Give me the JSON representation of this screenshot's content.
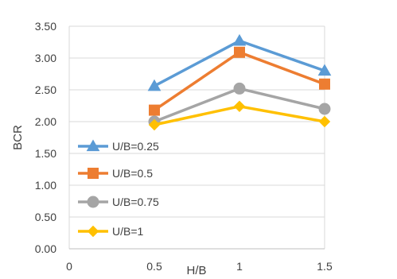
{
  "chart_data": {
    "type": "line",
    "title": "",
    "xlabel": "H/B",
    "ylabel": "BCR",
    "xlim": [
      0,
      1.5
    ],
    "ylim": [
      0,
      3.5
    ],
    "x_ticks": [
      "0",
      "0.5",
      "1",
      "1.5"
    ],
    "y_ticks": [
      "0.00",
      "0.50",
      "1.00",
      "1.50",
      "2.00",
      "2.50",
      "3.00",
      "3.50"
    ],
    "grid": "horizontal",
    "legend_position": "lower-left",
    "series": [
      {
        "name": "U/B=0.25",
        "color": "#5B9BD5",
        "marker": "triangle",
        "x": [
          0.5,
          1,
          1.5
        ],
        "values": [
          2.56,
          3.27,
          2.8
        ]
      },
      {
        "name": "U/B=0.5",
        "color": "#ED7D31",
        "marker": "square",
        "x": [
          0.5,
          1,
          1.5
        ],
        "values": [
          2.18,
          3.09,
          2.59
        ]
      },
      {
        "name": "U/B=0.75",
        "color": "#A5A5A5",
        "marker": "circle",
        "x": [
          0.5,
          1,
          1.5
        ],
        "values": [
          2.0,
          2.52,
          2.2
        ]
      },
      {
        "name": "U/B=1",
        "color": "#FFC000",
        "marker": "diamond",
        "x": [
          0.5,
          1,
          1.5
        ],
        "values": [
          1.95,
          2.24,
          2.0
        ]
      }
    ]
  }
}
